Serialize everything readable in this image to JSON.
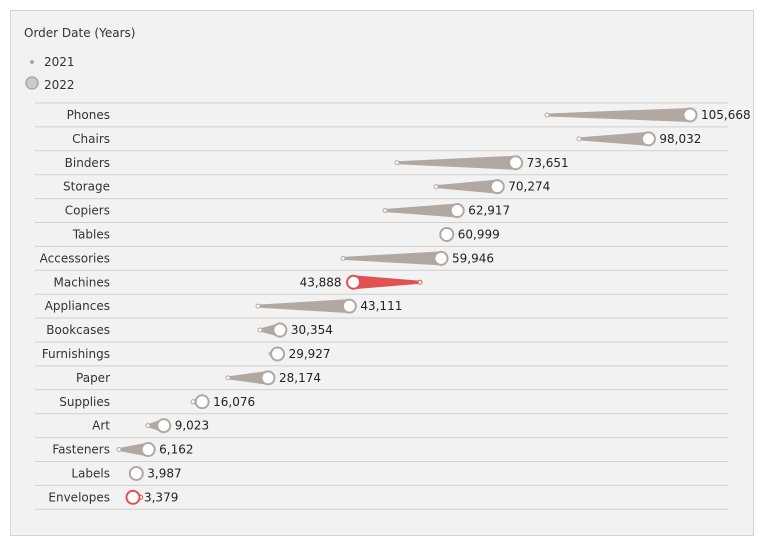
{
  "legend": {
    "title": "Order Date (Years)",
    "items": [
      {
        "label": "2021"
      },
      {
        "label": "2022"
      }
    ]
  },
  "colors": {
    "neutral": "#b2a8a2",
    "decline": "#e05252",
    "line": "#cfcfcf"
  },
  "chart_data": {
    "type": "comet",
    "title": "",
    "series": [
      "2021",
      "2022"
    ],
    "categories": [
      "Phones",
      "Chairs",
      "Binders",
      "Storage",
      "Copiers",
      "Tables",
      "Accessories",
      "Machines",
      "Appliances",
      "Bookcases",
      "Furnishings",
      "Paper",
      "Supplies",
      "Art",
      "Fasteners",
      "Labels",
      "Envelopes"
    ],
    "values_2021": [
      79410,
      85290,
      51860,
      59030,
      49660,
      60700,
      41950,
      56090,
      26340,
      26700,
      28720,
      20830,
      14400,
      6130,
      800,
      3800,
      4800
    ],
    "values_2022": [
      105668,
      98032,
      73651,
      70274,
      62917,
      60999,
      59946,
      43888,
      43111,
      30354,
      29927,
      28174,
      16076,
      9023,
      6162,
      3987,
      3379
    ],
    "labels_2022": [
      "105,668",
      "98,032",
      "73,651",
      "70,274",
      "62,917",
      "60,999",
      "59,946",
      "43,888",
      "43,111",
      "30,354",
      "29,927",
      "28,174",
      "16,076",
      "9,023",
      "6,162",
      "3,987",
      "3,379"
    ],
    "xlim": [
      0,
      106000
    ]
  }
}
